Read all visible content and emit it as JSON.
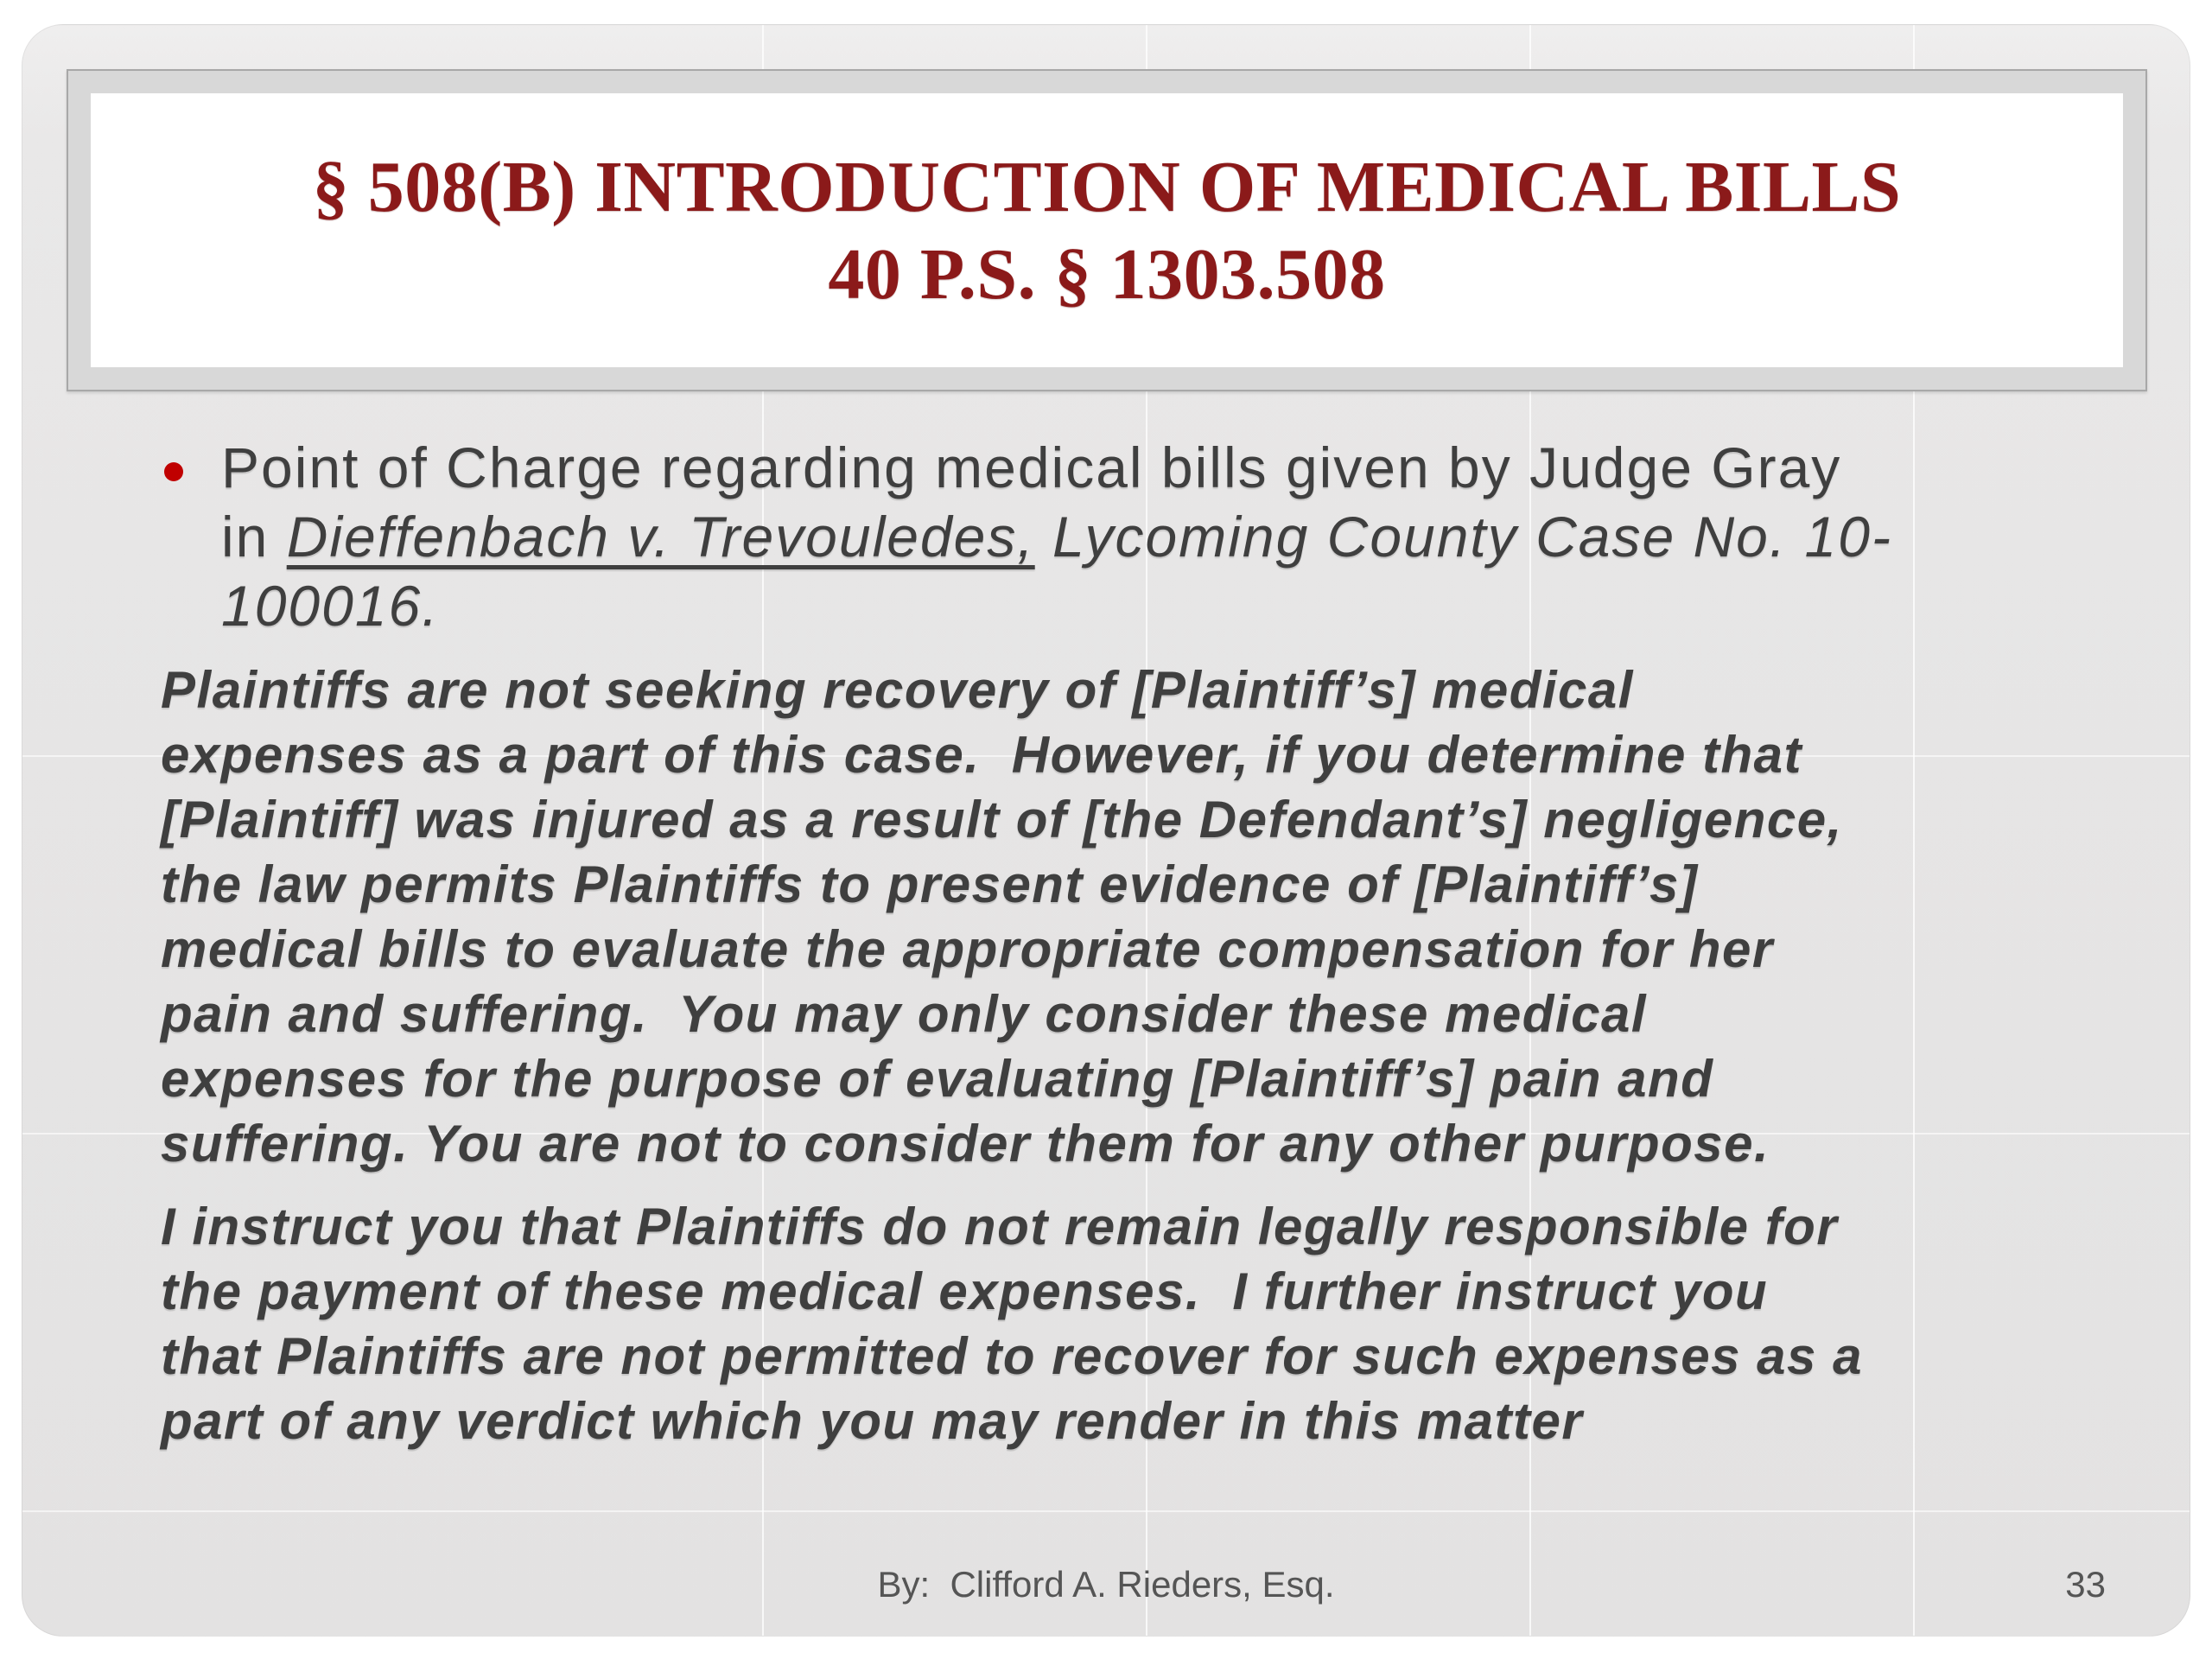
{
  "slide": {
    "title": {
      "text": "§ 508(B) INTRODUCTION OF MEDICAL BILLS\n40 P.S. § 1303.508"
    },
    "bullet": {
      "pre": "Point of Charge regarding medical bills given by Judge Gray\nin ",
      "case_name": "Dieffenbach v. Trevouledes,",
      "rest": " Lycoming County Case No. 10-\n100016."
    },
    "quote_paragraph_1": "Plaintiffs are not seeking recovery of [Plaintiff’s] medical\nexpenses as a part of this case.  However, if you determine that\n[Plaintiff] was injured as a result of [the Defendant’s] negligence,\nthe law permits Plaintiffs to present evidence of [Plaintiff’s]\nmedical bills to evaluate the appropriate compensation for her\npain and suffering.  You may only consider these medical\nexpenses for the purpose of evaluating [Plaintiff’s] pain and\nsuffering. You are not to consider them for any other purpose.",
    "quote_paragraph_2": "I instruct you that Plaintiffs do not remain legally responsible for\nthe payment of these medical expenses.  I further instruct you\nthat Plaintiffs are not permitted to recover for such expenses as a\npart of any verdict which you may render in this matter",
    "footer": {
      "byline": "By:  Clifford A. Rieders, Esq.",
      "page_number": "33"
    },
    "colors": {
      "title_red": "#8b1a1a",
      "bullet_dot_red": "#c00000",
      "body_text_gray": "#3f3f3f",
      "footer_text_gray": "#555555",
      "slide_background": "#e6e5e5",
      "frame_band_gray": "#d8d8d8",
      "frame_outline_gray": "#a8a8a8"
    }
  }
}
